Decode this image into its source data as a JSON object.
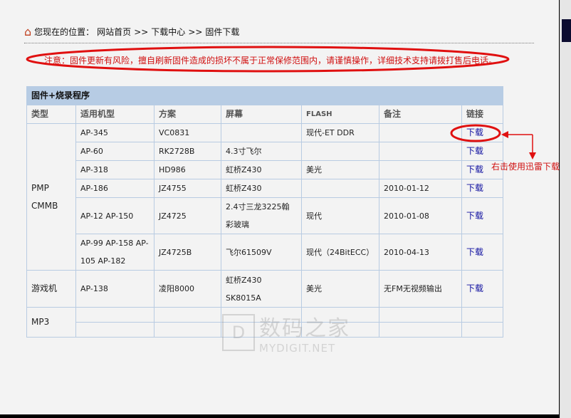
{
  "breadcrumb": {
    "prefix": "您现在的位置：",
    "items": [
      "网站首页",
      "下载中心",
      "固件下载"
    ],
    "sep": ">>"
  },
  "notice": "注意：固件更新有风险，擅自刷新固件造成的损坏不属于正常保修范围内，请谨慎操作，详细技术支持请拨打售后电话。",
  "table": {
    "title": "固件+烧录程序",
    "headers": [
      "类型",
      "适用机型",
      "方案",
      "屏幕",
      "FLASH",
      "备注",
      "链接"
    ],
    "groups": [
      {
        "type": "PMP\nCMMB"
      },
      {
        "type": "游戏机"
      },
      {
        "type": "MP3"
      }
    ],
    "rows": [
      {
        "model": "AP-345",
        "scheme": "VC0831",
        "screen": "",
        "flash": "现代-ET DDR",
        "note": "",
        "link": "下载"
      },
      {
        "model": "AP-60",
        "scheme": "RK2728B",
        "screen": "4.3寸飞尔",
        "flash": "",
        "note": "",
        "link": "下载"
      },
      {
        "model": "AP-318",
        "scheme": "HD986",
        "screen": "虹桥Z430",
        "flash": "美光",
        "note": "",
        "link": "下载"
      },
      {
        "model": "AP-186",
        "scheme": "JZ4755",
        "screen": "虹桥Z430",
        "flash": "",
        "note": "2010-01-12",
        "link": "下载"
      },
      {
        "model": "AP-12 AP-150",
        "scheme": "JZ4725",
        "screen": "2.4寸三龙3225翰彩玻璃",
        "flash": "现代",
        "note": "2010-01-08",
        "link": "下载"
      },
      {
        "model": "AP-99 AP-158 AP-105 AP-182",
        "scheme": "JZ4725B",
        "screen": "飞尔61509V",
        "flash": "现代（24BitECC）",
        "note": "2010-04-13",
        "link": "下载"
      },
      {
        "model": "AP-138",
        "scheme": "凌阳8000",
        "screen": "虹桥Z430 SK8015A",
        "flash": "美光",
        "note": "无FM无视频输出",
        "link": "下载"
      }
    ]
  },
  "annotation": "右击使用迅雷下载",
  "watermark": {
    "cn": "数码之家",
    "en": "MYDIGIT.NET",
    "logo": "D"
  },
  "colors": {
    "annotation": "#d01010",
    "link": "#1010a0",
    "table_title": "#b7cce4"
  }
}
